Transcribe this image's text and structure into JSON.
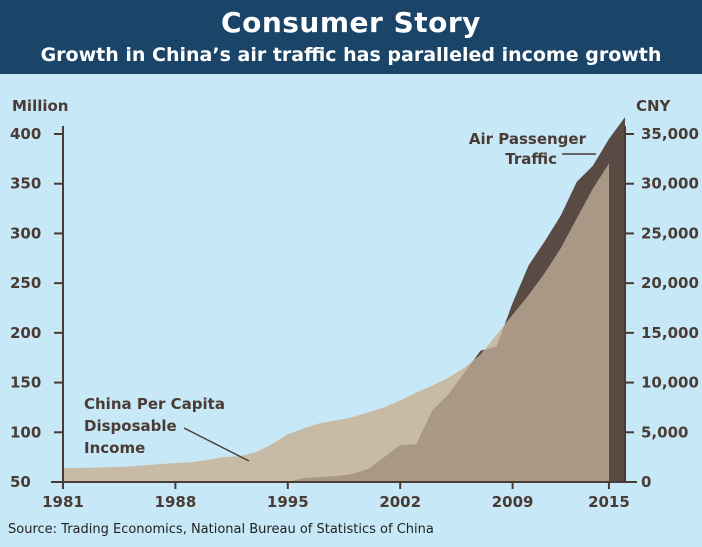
{
  "header": {
    "title": "Consumer Story",
    "subtitle": "Growth in China’s air traffic has paralleled income growth"
  },
  "source": "Source: Trading Economics, National Bureau of Statistics of China",
  "colors": {
    "background": "#c7e8f7",
    "header_bg": "#1a4468",
    "air_passenger_fill": "#5a4a44",
    "income_fill": "#c8bba6",
    "overlap_fill": "#a89885",
    "axis": "#4a3b35"
  },
  "chart_data": {
    "type": "area",
    "title": "Consumer Story",
    "subtitle": "Growth in China’s air traffic has paralleled income growth",
    "left_axis": {
      "unit_label": "Million",
      "range": [
        50,
        400
      ],
      "ticks": [
        400,
        350,
        300,
        250,
        200,
        150,
        100,
        50
      ],
      "tick_labels": [
        "400",
        "350",
        "300",
        "250",
        "200",
        "150",
        "100",
        "50"
      ]
    },
    "right_axis": {
      "unit_label": "CNY",
      "range": [
        0,
        35000
      ],
      "ticks": [
        35000,
        30000,
        25000,
        20000,
        15000,
        10000,
        5000,
        0
      ],
      "tick_labels": [
        "35,000",
        "30,000",
        "25,000",
        "20,000",
        "15,000",
        "10,000",
        "5,000",
        "0"
      ]
    },
    "x_axis": {
      "range": [
        1981,
        2016
      ],
      "ticks": [
        1981,
        1988,
        1995,
        2002,
        2009,
        2015
      ],
      "tick_labels": [
        "1981",
        "1988",
        "1995",
        "2002",
        "2009",
        "2015"
      ]
    },
    "grid": false,
    "series": [
      {
        "name": "Air Passenger Traffic",
        "axis": "left",
        "unit": "Million",
        "x": [
          1995,
          1996,
          1997,
          1998,
          1999,
          2000,
          2001,
          2002,
          2003,
          2004,
          2005,
          2006,
          2007,
          2008,
          2009,
          2010,
          2011,
          2012,
          2013,
          2014,
          2015,
          2016
        ],
        "y": [
          50,
          54,
          55,
          56,
          58,
          63,
          75,
          87,
          88,
          122,
          138,
          160,
          182,
          186,
          230,
          268,
          292,
          318,
          352,
          368,
          395,
          417
        ]
      },
      {
        "name": "China Per Capita Disposable Income",
        "axis": "right",
        "unit": "CNY",
        "x": [
          1981,
          1983,
          1985,
          1987,
          1989,
          1990,
          1991,
          1992,
          1993,
          1994,
          1995,
          1996,
          1997,
          1998,
          1999,
          2000,
          2001,
          2002,
          2003,
          2004,
          2005,
          2006,
          2007,
          2008,
          2009,
          2010,
          2011,
          2012,
          2013,
          2014,
          2015
        ],
        "y": [
          1400,
          1450,
          1550,
          1800,
          2000,
          2200,
          2500,
          2600,
          3000,
          3800,
          4800,
          5400,
          5900,
          6200,
          6500,
          7000,
          7500,
          8200,
          9000,
          9700,
          10500,
          11500,
          12800,
          14800,
          16800,
          18800,
          21000,
          23500,
          26500,
          29500,
          32000
        ]
      }
    ],
    "annotations": [
      {
        "lines": [
          "Air Passenger",
          "Traffic"
        ]
      },
      {
        "lines": [
          "China Per Capita",
          "Disposable",
          "Income"
        ]
      }
    ]
  }
}
